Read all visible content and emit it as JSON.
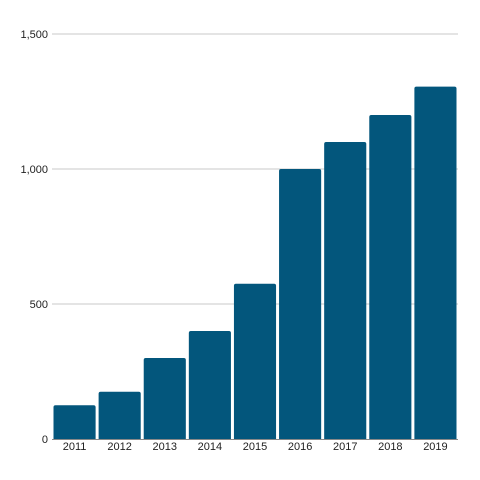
{
  "chart_data": {
    "type": "bar",
    "title": "",
    "xlabel": "",
    "ylabel": "",
    "categories": [
      "2011",
      "2012",
      "2013",
      "2014",
      "2015",
      "2016",
      "2017",
      "2018",
      "2019"
    ],
    "values": [
      125,
      175,
      300,
      400,
      575,
      1000,
      1100,
      1200,
      1305
    ],
    "ylim": [
      0,
      1500
    ],
    "y_ticks": [
      0,
      500,
      1000,
      1500
    ],
    "y_tick_labels": [
      "0",
      "500",
      "1,000",
      "1,500"
    ],
    "grid": true,
    "legend": "none",
    "bar_color": "#03567c",
    "grid_color": "#c8c8c8"
  }
}
